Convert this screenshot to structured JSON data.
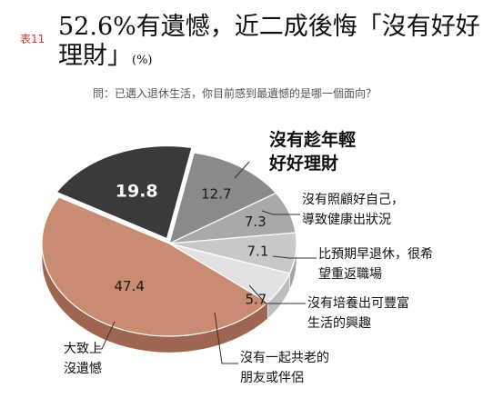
{
  "header": {
    "table_label": "表11",
    "title": "52.6%有遺憾，近二成後悔「沒有好好理財」",
    "unit": "(%)",
    "question": "問：已邁入退休生活，你目前感到最遺憾的是哪一個面向？"
  },
  "colors": {
    "slice_dark": "#3a3a3a",
    "slice_mid": "#8a8a8a",
    "slice_light1": "#a9a9a9",
    "slice_light2": "#c8c8c8",
    "slice_light3": "#e2e2e2",
    "slice_brown": "#c98b72",
    "leader": "#333333"
  },
  "chart_data": {
    "type": "pie",
    "title": "52.6%有遺憾，近二成後悔「沒有好好理財」",
    "unit": "(%)",
    "slices": [
      {
        "label": "沒有趁年輕好好理財",
        "value": 19.8
      },
      {
        "label": "沒有照顧好自己，導致健康出狀況",
        "value": 12.7
      },
      {
        "label": "比預期早退休，很希望重返職場",
        "value": 7.3
      },
      {
        "label": "沒有培養出可豐富生活的興趣",
        "value": 7.1
      },
      {
        "label": "沒有一起共老的朋友或伴侶",
        "value": 5.7
      },
      {
        "label": "大致上沒遺憾",
        "value": 47.4
      }
    ],
    "legend": "callouts"
  }
}
